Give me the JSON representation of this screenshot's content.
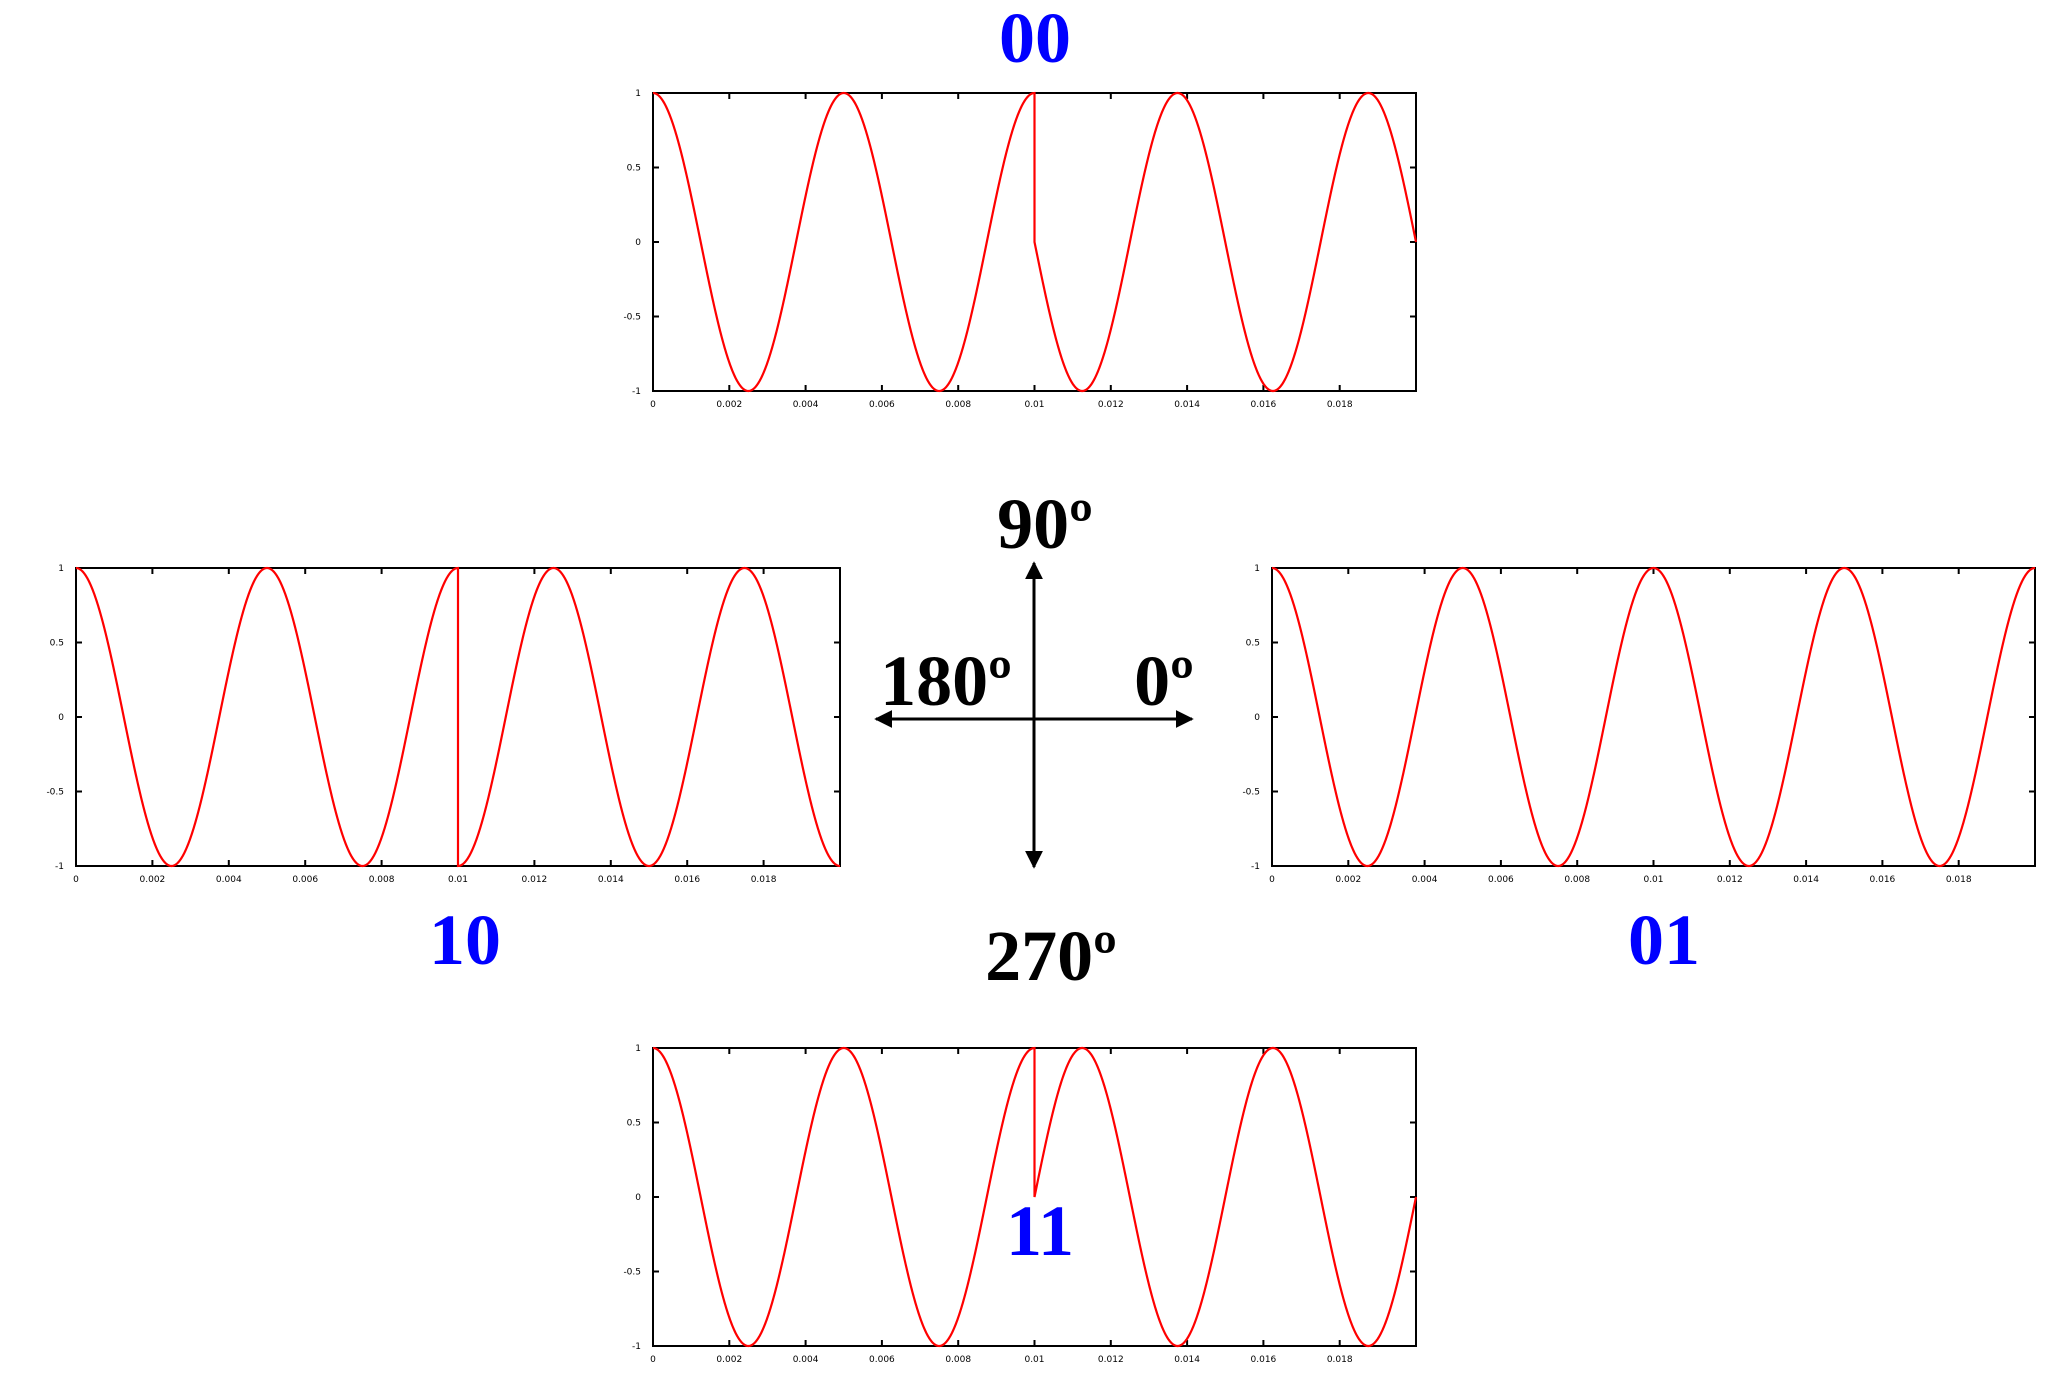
{
  "colors": {
    "code_label": "#0000ff",
    "waveform": "#ff0000",
    "axes": "#000000",
    "background": "#ffffff"
  },
  "phase_axes": {
    "up": "90º",
    "left": "180º",
    "right": "0º",
    "down": "270º"
  },
  "chart_data": [
    {
      "type": "line",
      "code": "00",
      "title": "00",
      "x_ticks": [
        "0",
        "0.002",
        "0.004",
        "0.006",
        "0.008",
        "0.01",
        "0.012",
        "0.014",
        "0.016",
        "0.018"
      ],
      "y_ticks": [
        "1",
        "0.5",
        "0",
        "-0.5",
        "-1"
      ],
      "xlim": [
        0,
        0.02
      ],
      "ylim": [
        -1,
        1
      ],
      "frequency_hz": 200,
      "segments": [
        {
          "x_start": 0,
          "x_end": 0.01,
          "phase_deg": 0
        },
        {
          "x_start": 0.01,
          "x_end": 0.02,
          "phase_deg": 90
        }
      ]
    },
    {
      "type": "line",
      "code": "10",
      "title": "10",
      "x_ticks": [
        "0",
        "0.002",
        "0.004",
        "0.006",
        "0.008",
        "0.01",
        "0.012",
        "0.014",
        "0.016",
        "0.018"
      ],
      "y_ticks": [
        "1",
        "0.5",
        "0",
        "-0.5",
        "-1"
      ],
      "xlim": [
        0,
        0.02
      ],
      "ylim": [
        -1,
        1
      ],
      "frequency_hz": 200,
      "segments": [
        {
          "x_start": 0,
          "x_end": 0.01,
          "phase_deg": 0
        },
        {
          "x_start": 0.01,
          "x_end": 0.02,
          "phase_deg": 180
        }
      ]
    },
    {
      "type": "line",
      "code": "01",
      "title": "01",
      "x_ticks": [
        "0",
        "0.002",
        "0.004",
        "0.006",
        "0.008",
        "0.01",
        "0.012",
        "0.014",
        "0.016",
        "0.018"
      ],
      "y_ticks": [
        "1",
        "0.5",
        "0",
        "-0.5",
        "-1"
      ],
      "xlim": [
        0,
        0.02
      ],
      "ylim": [
        -1,
        1
      ],
      "frequency_hz": 200,
      "segments": [
        {
          "x_start": 0,
          "x_end": 0.01,
          "phase_deg": 0
        },
        {
          "x_start": 0.01,
          "x_end": 0.02,
          "phase_deg": 0
        }
      ]
    },
    {
      "type": "line",
      "code": "11",
      "title": "11",
      "x_ticks": [
        "0",
        "0.002",
        "0.004",
        "0.006",
        "0.008",
        "0.01",
        "0.012",
        "0.014",
        "0.016",
        "0.018"
      ],
      "y_ticks": [
        "1",
        "0.5",
        "0",
        "-0.5",
        "-1"
      ],
      "xlim": [
        0,
        0.02
      ],
      "ylim": [
        -1,
        1
      ],
      "frequency_hz": 200,
      "segments": [
        {
          "x_start": 0,
          "x_end": 0.01,
          "phase_deg": 0
        },
        {
          "x_start": 0.01,
          "x_end": 0.02,
          "phase_deg": 270
        }
      ]
    }
  ]
}
